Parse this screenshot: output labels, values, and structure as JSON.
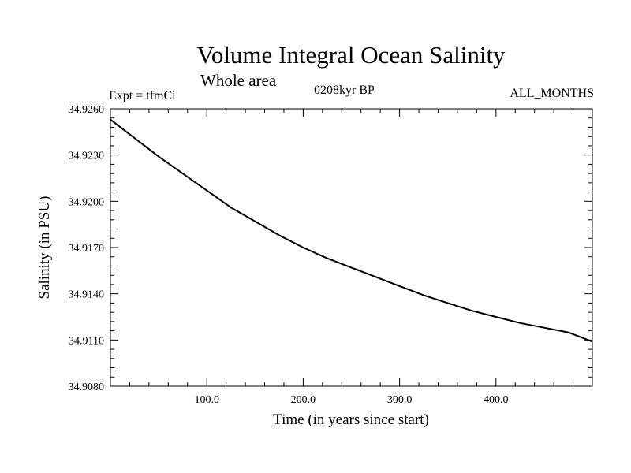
{
  "chart_data": {
    "type": "line",
    "title": "Volume Integral Ocean Salinity",
    "subtitle": "Whole area",
    "annotations": {
      "left": "Expt = tfmCi",
      "center": "0208kyr BP",
      "right": "ALL_MONTHS"
    },
    "xlabel": "Time (in years since start)",
    "ylabel": "Salinity (in PSU)",
    "xlim": [
      0,
      500
    ],
    "ylim": [
      34.908,
      34.926
    ],
    "x_ticks": [
      100,
      200,
      300,
      400
    ],
    "x_tick_labels": [
      "100.0",
      "200.0",
      "300.0",
      "400.0"
    ],
    "y_ticks": [
      34.908,
      34.911,
      34.914,
      34.917,
      34.92,
      34.923,
      34.926
    ],
    "y_tick_labels": [
      "34.9080",
      "34.9110",
      "34.9140",
      "34.9170",
      "34.9200",
      "34.9230",
      "34.9260"
    ],
    "grid": false,
    "series": [
      {
        "x": [
          0,
          25,
          50,
          75,
          100,
          125,
          150,
          175,
          200,
          225,
          250,
          275,
          300,
          325,
          350,
          375,
          400,
          425,
          450,
          475,
          500
        ],
        "values": [
          34.9253,
          34.9241,
          34.9229,
          34.9218,
          34.9207,
          34.9196,
          34.9187,
          34.9178,
          34.917,
          34.9163,
          34.9157,
          34.9151,
          34.9145,
          34.9139,
          34.9134,
          34.9129,
          34.9125,
          34.9121,
          34.9118,
          34.9115,
          34.9109
        ]
      }
    ]
  }
}
